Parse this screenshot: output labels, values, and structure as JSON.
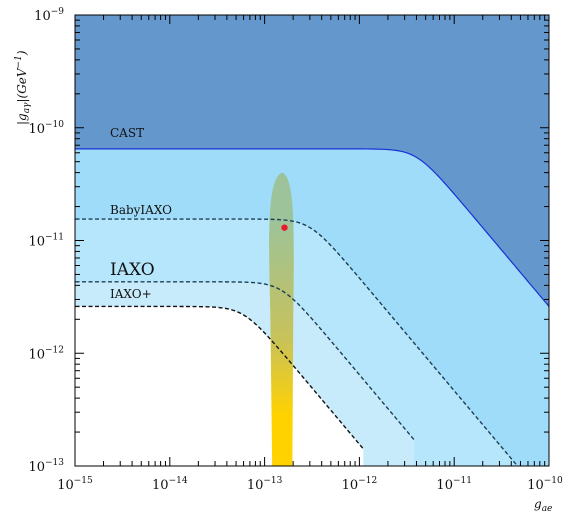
{
  "chart_data": {
    "type": "line",
    "title": "",
    "xlabel": "g_ae",
    "ylabel": "|g_aγ|(GeV^-1)",
    "x_scale": "log",
    "y_scale": "log",
    "xlim": [
      1e-15,
      1e-10
    ],
    "ylim": [
      1e-13,
      1e-09
    ],
    "grid": false,
    "x_ticks": [
      {
        "base": "10",
        "exp": "−15",
        "value": 1e-15
      },
      {
        "base": "10",
        "exp": "−14",
        "value": 1e-14
      },
      {
        "base": "10",
        "exp": "−13",
        "value": 1e-13
      },
      {
        "base": "10",
        "exp": "−12",
        "value": 1e-12
      },
      {
        "base": "10",
        "exp": "−11",
        "value": 1e-11
      },
      {
        "base": "10",
        "exp": "−10",
        "value": 1e-10
      }
    ],
    "y_ticks": [
      {
        "base": "10",
        "exp": "−13",
        "value": 1e-13
      },
      {
        "base": "10",
        "exp": "−12",
        "value": 1e-12
      },
      {
        "base": "10",
        "exp": "−11",
        "value": 1e-11
      },
      {
        "base": "10",
        "exp": "−10",
        "value": 1e-10
      },
      {
        "base": "10",
        "exp": "−9",
        "value": 1e-09
      }
    ],
    "series": [
      {
        "name": "CAST",
        "plateau": 6.5e-11,
        "knee": 4e-12,
        "slope": -1,
        "x_end": 1e-10,
        "y_at_end": 9e-13,
        "style": "solid",
        "color": "#1a2fd6",
        "fill_above": "#6497cc",
        "fill_below": "#9fdcf9"
      },
      {
        "name": "BabyIAXO",
        "plateau": 1.55e-11,
        "knee": 3e-13,
        "slope": -1,
        "x_end": 5.5e-11,
        "style": "dashed",
        "color": "#1f3f55",
        "fill_below": "#b6e6fb"
      },
      {
        "name": "IAXO",
        "plateau": 4.3e-12,
        "knee": 1.5e-13,
        "slope": -1,
        "x_end": 3.8e-12,
        "style": "dashed",
        "color": "#1f3f55",
        "fill_below": "#c7ebfb"
      },
      {
        "name": "IAXO+",
        "plateau": 2.6e-12,
        "knee": 6e-14,
        "slope": -1,
        "x_end": 1.1e-12,
        "style": "dashed",
        "color": "#111111",
        "fill_below": "#ffffff"
      }
    ],
    "hint_region": {
      "x_center": 1.5e-13,
      "y_top": 4e-11,
      "y_bottom": 1e-13,
      "colors_top": "#9cc39a",
      "colors_bottom": "#ffd200"
    },
    "best_fit_point": {
      "x": 1.62e-13,
      "y": 1.3e-11,
      "color": "#e8192c"
    }
  }
}
